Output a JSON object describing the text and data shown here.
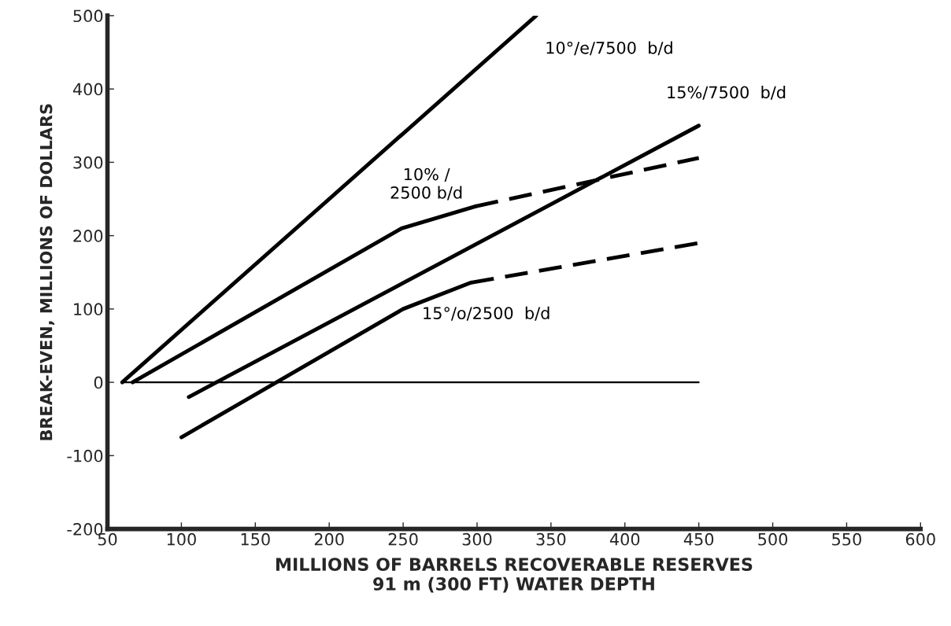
{
  "chart_data": {
    "type": "line",
    "xlabel": "MILLIONS OF BARRELS RECOVERABLE RESERVES\n91 m (300 FT) WATER DEPTH",
    "ylabel": "BREAK-EVEN, MILLIONS OF DOLLARS",
    "series": [
      {
        "name": "10°/e/7500  b/d",
        "color": "#000000",
        "x": [
          60,
          340
        ],
        "values": [
          0,
          500
        ],
        "line_style": "solid"
      },
      {
        "name": "10% /\n2500 b/d",
        "color": "#000000",
        "x": [
          67,
          249,
          299
        ],
        "values": [
          0,
          210,
          240
        ],
        "line_style": "solid"
      },
      {
        "color": "#000000",
        "x": [
          299,
          450
        ],
        "values": [
          240,
          306
        ],
        "line_style": "dashed"
      },
      {
        "name": "15%/7500  b/d",
        "color": "#000000",
        "x": [
          105,
          450
        ],
        "values": [
          -20,
          350
        ],
        "line_style": "solid"
      },
      {
        "name": "15°/o/2500  b/d",
        "color": "#000000",
        "x": [
          100,
          250,
          296
        ],
        "values": [
          -75,
          100,
          136
        ],
        "line_style": "solid"
      },
      {
        "color": "#000000",
        "x": [
          296,
          450
        ],
        "values": [
          136,
          190
        ],
        "line_style": "dashed"
      },
      {
        "color": "#000000",
        "x": [
          60,
          450
        ],
        "values": [
          0,
          0
        ],
        "line_style": "solid"
      }
    ],
    "xlim": [
      50,
      600
    ],
    "xticks": [
      50,
      100,
      150,
      200,
      250,
      300,
      350,
      400,
      450,
      500,
      550,
      600
    ],
    "ylim": [
      -200,
      500
    ],
    "yticks": [
      -200,
      -100,
      0,
      100,
      200,
      300,
      400,
      500
    ],
    "grid": false,
    "legend": false,
    "marker": "none"
  }
}
